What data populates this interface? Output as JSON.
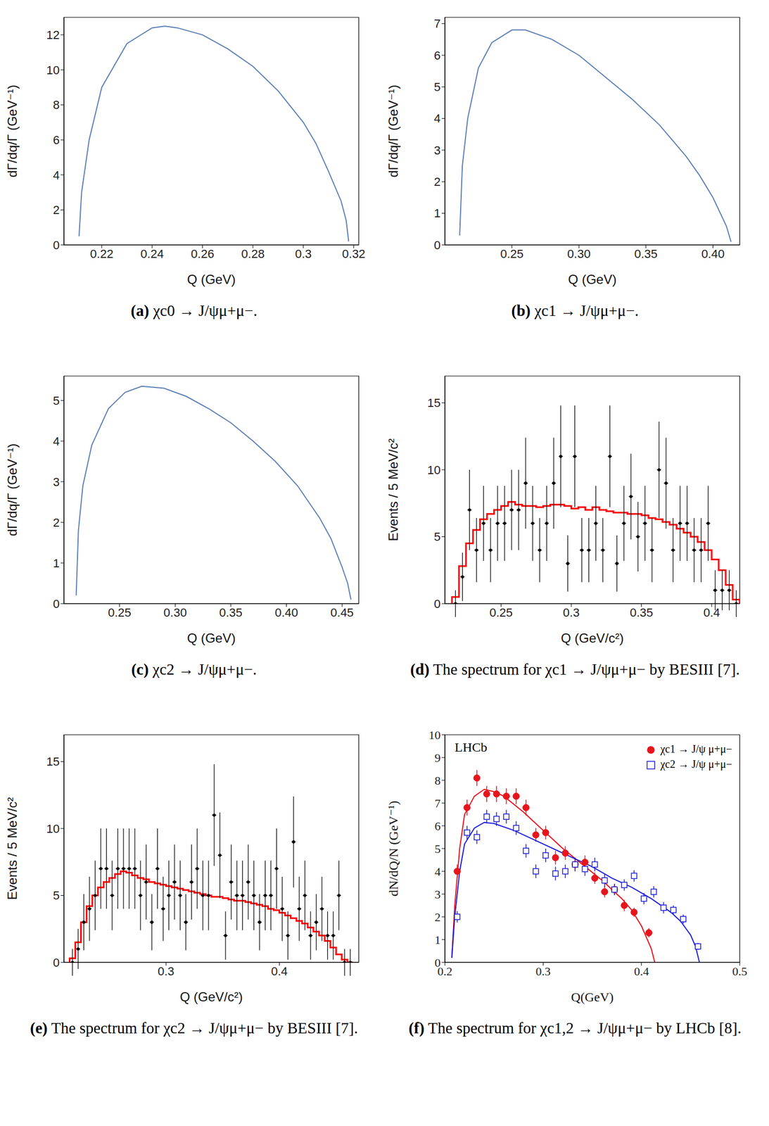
{
  "chart_data": [
    {
      "type": "line",
      "caption": "(a) χc0 → J/ψμ+μ−.",
      "x_label": "Q (GeV)",
      "y_label": "dΓ/dq/Γ (GeV⁻¹)",
      "color": "#5e81b5",
      "x": [
        0.211,
        0.212,
        0.215,
        0.22,
        0.23,
        0.24,
        0.245,
        0.25,
        0.26,
        0.27,
        0.28,
        0.29,
        0.3,
        0.305,
        0.31,
        0.315,
        0.317,
        0.318
      ],
      "values": [
        0.5,
        3,
        6,
        9,
        11.5,
        12.4,
        12.5,
        12.4,
        12,
        11.2,
        10.2,
        8.8,
        7,
        5.8,
        4.2,
        2.5,
        1.4,
        0.2
      ],
      "xlim": [
        0.205,
        0.322
      ],
      "xticks": [
        0.22,
        0.24,
        0.26,
        0.28,
        0.3,
        0.32
      ],
      "ylim": [
        0,
        13
      ],
      "yticks": [
        0,
        2,
        4,
        6,
        8,
        10,
        12
      ]
    },
    {
      "type": "line",
      "caption": "(b) χc1 → J/ψμ+μ−.",
      "x_label": "Q (GeV)",
      "y_label": "dΓ/dq/Γ (GeV⁻¹)",
      "color": "#5e81b5",
      "x": [
        0.211,
        0.213,
        0.217,
        0.225,
        0.235,
        0.25,
        0.26,
        0.28,
        0.3,
        0.32,
        0.34,
        0.36,
        0.38,
        0.39,
        0.4,
        0.41,
        0.4135
      ],
      "values": [
        0.3,
        2.5,
        4,
        5.6,
        6.4,
        6.8,
        6.8,
        6.5,
        6.0,
        5.3,
        4.6,
        3.8,
        2.8,
        2.2,
        1.5,
        0.6,
        0.1
      ],
      "xlim": [
        0.2,
        0.42
      ],
      "xticks": [
        0.25,
        {
          "value": 0.3,
          "label": "0.30"
        },
        0.35,
        {
          "value": 0.4,
          "label": "0.40"
        }
      ],
      "ylim": [
        0,
        7.2
      ],
      "yticks": [
        0,
        1,
        2,
        3,
        4,
        5,
        6,
        7
      ]
    },
    {
      "type": "line",
      "caption": "(c) χc2 → J/ψμ+μ−.",
      "x_label": "Q (GeV)",
      "y_label": "dΓ/dq/Γ (GeV⁻¹)",
      "color": "#5e81b5",
      "x": [
        0.211,
        0.213,
        0.217,
        0.225,
        0.24,
        0.255,
        0.27,
        0.29,
        0.31,
        0.33,
        0.35,
        0.37,
        0.39,
        0.41,
        0.43,
        0.44,
        0.45,
        0.455,
        0.458
      ],
      "values": [
        0.2,
        1.8,
        2.9,
        3.9,
        4.8,
        5.2,
        5.35,
        5.3,
        5.1,
        4.8,
        4.45,
        4.0,
        3.5,
        2.9,
        2.1,
        1.6,
        0.9,
        0.5,
        0.1
      ],
      "xlim": [
        0.2,
        0.465
      ],
      "xticks": [
        0.25,
        {
          "value": 0.3,
          "label": "0.30"
        },
        0.35,
        {
          "value": 0.4,
          "label": "0.40"
        },
        0.45
      ],
      "ylim": [
        0,
        5.6
      ],
      "yticks": [
        0,
        1,
        2,
        3,
        4,
        5
      ]
    },
    {
      "type": "histogram",
      "caption": "(d) The spectrum for χc1 → J/ψμ+μ− by BESIII [7].",
      "x_label": "Q (GeV/c²)",
      "y_label": "Events / 5 MeV/c²",
      "histogram": {
        "color": "#ff0000",
        "bins": [
          0.215,
          0.22,
          0.225,
          0.23,
          0.235,
          0.24,
          0.245,
          0.25,
          0.255,
          0.26,
          0.265,
          0.27,
          0.275,
          0.28,
          0.285,
          0.29,
          0.295,
          0.3,
          0.305,
          0.31,
          0.315,
          0.32,
          0.325,
          0.33,
          0.335,
          0.34,
          0.345,
          0.35,
          0.355,
          0.36,
          0.365,
          0.37,
          0.375,
          0.38,
          0.385,
          0.39,
          0.395,
          0.4,
          0.405,
          0.41,
          0.415,
          0.42
        ],
        "counts": [
          0.5,
          2.8,
          4.5,
          5.5,
          6.3,
          6.7,
          7.0,
          7.3,
          7.6,
          7.4,
          7.3,
          7.3,
          7.2,
          7.3,
          7.4,
          7.4,
          7.3,
          7.1,
          7.2,
          7.0,
          7.2,
          7.0,
          6.9,
          6.8,
          6.8,
          6.7,
          6.7,
          6.6,
          6.4,
          6.3,
          6.1,
          5.9,
          5.6,
          5.3,
          5.0,
          4.6,
          4.0,
          3.3,
          2.5,
          1.4,
          0.3
        ]
      },
      "points": {
        "color": "#000000",
        "marker": "point",
        "x": [
          0.2175,
          0.2225,
          0.2275,
          0.2325,
          0.2375,
          0.2425,
          0.2475,
          0.2525,
          0.2575,
          0.2625,
          0.2675,
          0.2725,
          0.2775,
          0.2825,
          0.2875,
          0.2925,
          0.2975,
          0.3025,
          0.3075,
          0.3125,
          0.3175,
          0.3225,
          0.3275,
          0.3325,
          0.3375,
          0.3425,
          0.3475,
          0.3525,
          0.3575,
          0.3625,
          0.3675,
          0.3725,
          0.3775,
          0.3825,
          0.3875,
          0.3925,
          0.3975,
          0.4025,
          0.4075,
          0.4125,
          0.4175
        ],
        "values": [
          0,
          2,
          7,
          4,
          6,
          4,
          6,
          6,
          7,
          7,
          9,
          6,
          4,
          6,
          9,
          11,
          3,
          11,
          4,
          4,
          6,
          4,
          11,
          3,
          6,
          8,
          5,
          6,
          4,
          10,
          9,
          4,
          6,
          6,
          4,
          4,
          6,
          1,
          1,
          1,
          0
        ],
        "errors": [
          1.0,
          1.8,
          3.0,
          2.4,
          2.8,
          2.4,
          2.8,
          2.8,
          3.0,
          3.0,
          3.4,
          2.8,
          2.4,
          2.8,
          3.4,
          3.8,
          2.1,
          3.8,
          2.4,
          2.4,
          2.8,
          2.4,
          3.8,
          2.1,
          2.8,
          3.2,
          2.6,
          2.8,
          2.4,
          3.6,
          3.4,
          2.4,
          2.8,
          2.8,
          2.4,
          2.4,
          2.8,
          1.5,
          1.5,
          1.5,
          1.0
        ]
      },
      "xlim": [
        0.21,
        0.42
      ],
      "xticks": [
        0.25,
        0.3,
        0.35,
        0.4
      ],
      "ylim": [
        0,
        17
      ],
      "yticks": [
        0,
        5,
        10,
        15
      ]
    },
    {
      "type": "histogram",
      "caption": "(e) The spectrum for χc2 → J/ψμ+μ− by BESIII [7].",
      "x_label": "Q (GeV/c²)",
      "y_label": "Events / 5 MeV/c²",
      "histogram": {
        "color": "#ff0000",
        "bins": [
          0.215,
          0.22,
          0.225,
          0.23,
          0.235,
          0.24,
          0.245,
          0.25,
          0.255,
          0.26,
          0.265,
          0.27,
          0.275,
          0.28,
          0.285,
          0.29,
          0.295,
          0.3,
          0.305,
          0.31,
          0.315,
          0.32,
          0.325,
          0.33,
          0.335,
          0.34,
          0.345,
          0.35,
          0.355,
          0.36,
          0.365,
          0.37,
          0.375,
          0.38,
          0.385,
          0.39,
          0.395,
          0.4,
          0.405,
          0.41,
          0.415,
          0.42,
          0.425,
          0.43,
          0.435,
          0.44,
          0.445,
          0.45,
          0.455,
          0.46,
          0.465
        ],
        "counts": [
          0.3,
          1.5,
          3.0,
          4.2,
          5.0,
          5.6,
          6.0,
          6.3,
          6.6,
          6.8,
          6.7,
          6.5,
          6.3,
          6.2,
          6.0,
          5.9,
          5.8,
          5.7,
          5.6,
          5.5,
          5.4,
          5.3,
          5.2,
          5.1,
          5.0,
          4.9,
          4.9,
          4.8,
          4.7,
          4.6,
          4.6,
          4.5,
          4.4,
          4.3,
          4.2,
          4.0,
          3.9,
          3.7,
          3.5,
          3.3,
          3.1,
          2.9,
          2.6,
          2.3,
          2.0,
          1.6,
          1.1,
          0.6,
          0.2,
          0.0
        ]
      },
      "points": {
        "color": "#000000",
        "marker": "point",
        "x": [
          0.2175,
          0.2225,
          0.2275,
          0.2325,
          0.2375,
          0.2425,
          0.2475,
          0.2525,
          0.2575,
          0.2625,
          0.2675,
          0.2725,
          0.2775,
          0.2825,
          0.2875,
          0.2925,
          0.2975,
          0.3025,
          0.3075,
          0.3125,
          0.3175,
          0.3225,
          0.3275,
          0.3325,
          0.3375,
          0.3425,
          0.3475,
          0.3525,
          0.3575,
          0.3625,
          0.3675,
          0.3725,
          0.3775,
          0.3825,
          0.3875,
          0.3925,
          0.3975,
          0.4025,
          0.4075,
          0.4125,
          0.4175,
          0.4225,
          0.4275,
          0.4325,
          0.4375,
          0.4425,
          0.4475,
          0.4525,
          0.4575,
          0.4625
        ],
        "values": [
          0,
          1,
          3,
          4,
          5,
          7,
          7,
          5,
          7,
          7,
          7,
          7,
          5,
          6,
          3,
          7,
          4,
          5,
          6,
          5,
          3,
          6,
          7,
          5,
          5,
          11,
          8,
          2,
          6,
          5,
          5,
          6,
          5,
          3,
          5,
          5,
          7,
          4,
          2,
          9,
          4,
          5,
          2,
          3,
          4,
          2,
          2,
          5,
          0,
          0
        ],
        "errors": [
          1.0,
          1.5,
          2.1,
          2.4,
          2.6,
          3.0,
          3.0,
          2.6,
          3.0,
          3.0,
          3.0,
          3.0,
          2.6,
          2.8,
          2.1,
          3.0,
          2.4,
          2.6,
          2.8,
          2.6,
          2.1,
          2.8,
          3.0,
          2.6,
          2.6,
          3.8,
          3.2,
          1.8,
          2.8,
          2.6,
          2.6,
          2.8,
          2.6,
          2.1,
          2.6,
          2.6,
          3.0,
          2.4,
          1.8,
          3.4,
          2.4,
          2.6,
          1.8,
          2.1,
          2.4,
          1.8,
          1.8,
          2.6,
          1.0,
          1.0
        ]
      },
      "xlim": [
        0.21,
        0.47
      ],
      "xticks": [
        0.3,
        0.4
      ],
      "ylim": [
        0,
        17
      ],
      "yticks": [
        0,
        5,
        10,
        15
      ]
    },
    {
      "type": "scatter",
      "caption": "(f) The spectrum for χc1,2 → J/ψμ+μ− by LHCb [8].",
      "x_label": "Q(GeV)",
      "y_label": "dN/dQ/N (GeV⁻¹)",
      "legend": "upper right",
      "annotations": [
        {
          "text": "LHCb"
        }
      ],
      "series": [
        {
          "name": "χc1 → J/ψ μ+μ−",
          "color": "#e8141c",
          "marker": "circle",
          "x": [
            0.2125,
            0.2225,
            0.2325,
            0.2425,
            0.2525,
            0.2625,
            0.2725,
            0.2825,
            0.2925,
            0.3025,
            0.3125,
            0.3225,
            0.3325,
            0.3425,
            0.3525,
            0.3625,
            0.3725,
            0.3825,
            0.3925,
            0.4075
          ],
          "values": [
            4.0,
            6.8,
            8.1,
            7.4,
            7.4,
            7.3,
            7.3,
            6.8,
            5.6,
            5.7,
            4.6,
            4.8,
            4.3,
            4.4,
            3.7,
            3.1,
            3.2,
            2.5,
            2.2,
            1.3
          ],
          "errors": [
            0.3,
            0.35,
            0.35,
            0.35,
            0.35,
            0.35,
            0.35,
            0.35,
            0.3,
            0.3,
            0.3,
            0.3,
            0.3,
            0.3,
            0.25,
            0.25,
            0.25,
            0.25,
            0.2,
            0.2
          ],
          "fit": {
            "x": [
              0.207,
              0.21,
              0.215,
              0.22,
              0.23,
              0.24,
              0.25,
              0.26,
              0.28,
              0.3,
              0.32,
              0.34,
              0.36,
              0.38,
              0.39,
              0.4,
              0.405,
              0.41,
              0.4135
            ],
            "values": [
              0.2,
              2.5,
              5.0,
              6.5,
              7.3,
              7.6,
              7.5,
              7.3,
              6.6,
              5.8,
              5.0,
              4.3,
              3.6,
              2.8,
              2.3,
              1.6,
              1.1,
              0.6,
              0
            ]
          }
        },
        {
          "name": "χc2 → J/ψ μ+μ−",
          "color": "#1f1fe0",
          "marker": "square",
          "x": [
            0.2125,
            0.2225,
            0.2325,
            0.2425,
            0.2525,
            0.2625,
            0.2725,
            0.2825,
            0.2925,
            0.3025,
            0.3125,
            0.3225,
            0.3325,
            0.3425,
            0.3525,
            0.3625,
            0.3725,
            0.3825,
            0.3925,
            0.4025,
            0.4125,
            0.4225,
            0.4325,
            0.4425,
            0.4575
          ],
          "values": [
            2.0,
            5.7,
            5.5,
            6.4,
            6.3,
            6.4,
            5.9,
            4.9,
            4.0,
            4.7,
            3.9,
            4.0,
            4.3,
            4.1,
            4.3,
            3.6,
            3.2,
            3.4,
            3.8,
            2.8,
            3.1,
            2.4,
            2.3,
            1.9,
            0.7
          ],
          "errors": [
            0.25,
            0.3,
            0.3,
            0.3,
            0.3,
            0.3,
            0.3,
            0.3,
            0.3,
            0.3,
            0.3,
            0.3,
            0.3,
            0.3,
            0.3,
            0.3,
            0.25,
            0.25,
            0.25,
            0.25,
            0.25,
            0.25,
            0.2,
            0.2,
            0.15
          ],
          "fit": {
            "x": [
              0.207,
              0.21,
              0.215,
              0.22,
              0.23,
              0.24,
              0.25,
              0.27,
              0.29,
              0.31,
              0.33,
              0.35,
              0.37,
              0.39,
              0.41,
              0.43,
              0.44,
              0.45,
              0.455,
              0.459
            ],
            "values": [
              0.2,
              2.0,
              4.0,
              5.2,
              5.9,
              6.15,
              6.1,
              5.8,
              5.4,
              5.0,
              4.6,
              4.2,
              3.7,
              3.3,
              2.8,
              2.2,
              1.8,
              1.2,
              0.7,
              0
            ]
          }
        }
      ],
      "xlim": [
        0.2,
        0.5
      ],
      "xticks": [
        0.2,
        0.3,
        0.4,
        0.5
      ],
      "ylim": [
        0,
        10
      ],
      "yticks": [
        0,
        1,
        2,
        3,
        4,
        5,
        6,
        7,
        8,
        9,
        10
      ]
    }
  ]
}
